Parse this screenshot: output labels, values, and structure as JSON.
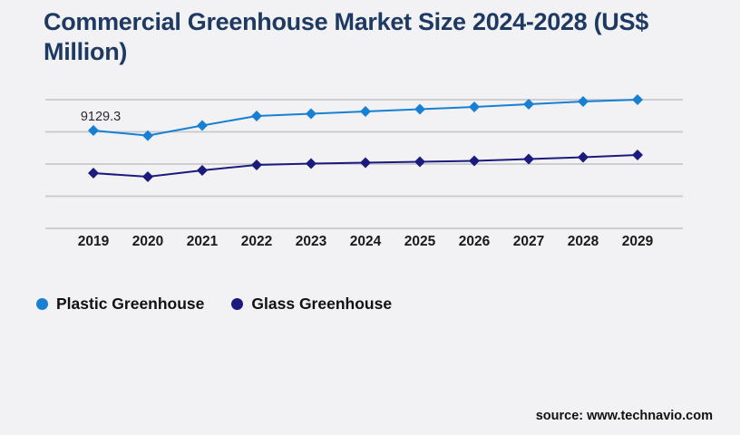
{
  "page": {
    "title": "Commercial Greenhouse Market Size 2024-2028 (US$ Million)",
    "source": "source: www.technavio.com"
  },
  "colors": {
    "background": "#f2f2f4",
    "title": "#1e3a63",
    "gridline": "#c8c8cd",
    "axis_label": "#1a1a1a",
    "data_label": "#2b2b2b",
    "plastic_greenhouse": "#1780d2",
    "glass_greenhouse": "#1b1b7e"
  },
  "legend": [
    {
      "label": "Plastic Greenhouse",
      "color": "#1780d2"
    },
    {
      "label": "Glass Greenhouse",
      "color": "#1b1b7e"
    }
  ],
  "chart_data": {
    "type": "line",
    "title": "Commercial Greenhouse Market Size 2024-2028 (US$ Million)",
    "categories": [
      "2019",
      "2020",
      "2021",
      "2022",
      "2023",
      "2024",
      "2025",
      "2026",
      "2027",
      "2028",
      "2029"
    ],
    "series": [
      {
        "name": "Plastic Greenhouse",
        "color": "#1780d2",
        "values": [
          9129.3,
          8650,
          9590,
          10480,
          10690,
          10900,
          11110,
          11320,
          11580,
          11830,
          12000
        ]
      },
      {
        "name": "Glass Greenhouse",
        "color": "#1b1b7e",
        "values": [
          5150,
          4820,
          5410,
          5915,
          6040,
          6125,
          6210,
          6295,
          6465,
          6635,
          6845
        ]
      }
    ],
    "annotations": [
      {
        "series": "Plastic Greenhouse",
        "category": "2019",
        "text": "9129.3"
      }
    ],
    "xlabel": "",
    "ylabel": "",
    "ylim": [
      0,
      12000
    ],
    "gridline_values": [
      0,
      3000,
      6000,
      9000,
      12000
    ],
    "grid": true,
    "y_axis_tick_labels_visible": false,
    "legend_position": "bottom-left",
    "marker_shape": "diamond"
  }
}
